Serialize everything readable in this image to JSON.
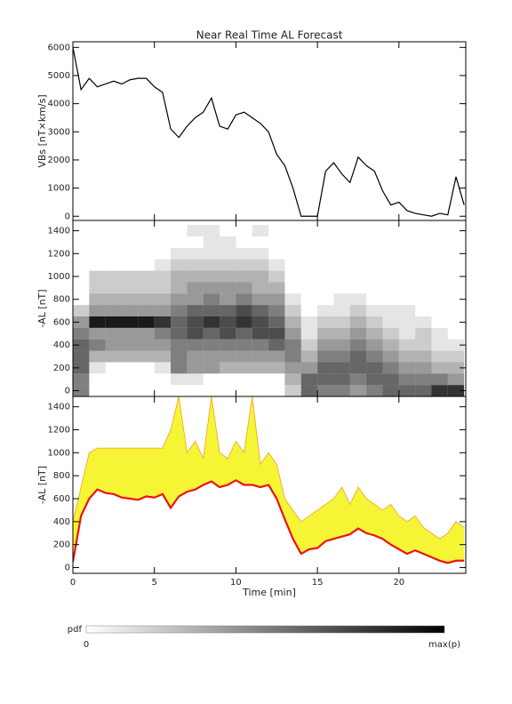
{
  "chart_data": [
    {
      "type": "line",
      "title": "Near Real Time AL Forecast",
      "ylabel": "VBs [nT×km/s]",
      "color": "#000000",
      "x": [
        0,
        0.5,
        1,
        1.5,
        2,
        2.5,
        3,
        3.5,
        4,
        4.5,
        5,
        5.5,
        6,
        6.5,
        7,
        7.5,
        8,
        8.5,
        9,
        9.5,
        10,
        10.5,
        11,
        11.5,
        12,
        12.5,
        13,
        13.5,
        14,
        14.5,
        15,
        15.5,
        16,
        16.5,
        17,
        17.5,
        18,
        18.5,
        19,
        19.5,
        20,
        20.5,
        21,
        21.5,
        22,
        22.5,
        23,
        23.5,
        24
      ],
      "values": [
        6000,
        4500,
        4900,
        4600,
        4700,
        4800,
        4700,
        4850,
        4900,
        4900,
        4600,
        4400,
        3100,
        2800,
        3200,
        3500,
        3700,
        4200,
        3200,
        3100,
        3600,
        3700,
        3500,
        3300,
        3000,
        2200,
        1800,
        1000,
        0,
        0,
        0,
        1600,
        1900,
        1500,
        1200,
        2100,
        1800,
        1600,
        900,
        400,
        500,
        200,
        100,
        50,
        0,
        100,
        50,
        1400,
        400
      ],
      "xlim": [
        0,
        24.1
      ],
      "xticks": [
        0,
        5,
        10,
        15,
        20
      ],
      "ylim": [
        -150,
        6200
      ],
      "yticks": [
        0,
        1000,
        2000,
        3000,
        4000,
        5000,
        6000
      ]
    },
    {
      "type": "heatmap",
      "ylabel": "-AL [nT]",
      "x_bins": [
        0,
        1,
        2,
        3,
        4,
        5,
        6,
        7,
        8,
        9,
        10,
        11,
        12,
        13,
        14,
        15,
        16,
        17,
        18,
        19,
        20,
        21,
        22,
        23,
        24
      ],
      "y_bins": [
        -50,
        50,
        150,
        250,
        350,
        450,
        550,
        650,
        750,
        850,
        950,
        1050,
        1150,
        1250,
        1350,
        1450
      ],
      "z": [
        [
          0.5,
          0.5,
          0.6,
          0.6,
          0.6,
          0.5,
          0.4,
          0.2,
          0,
          0,
          0,
          0,
          0,
          0,
          0
        ],
        [
          0,
          0,
          0.1,
          0.3,
          0.5,
          0.4,
          0.9,
          0.4,
          0.3,
          0.2,
          0.2,
          0,
          0,
          0,
          0
        ],
        [
          0,
          0,
          0,
          0.3,
          0.4,
          0.4,
          0.9,
          0.4,
          0.3,
          0.2,
          0.2,
          0,
          0,
          0,
          0
        ],
        [
          0,
          0,
          0,
          0.3,
          0.4,
          0.4,
          0.9,
          0.4,
          0.3,
          0.2,
          0.2,
          0,
          0,
          0,
          0
        ],
        [
          0,
          0,
          0,
          0.3,
          0.4,
          0.4,
          0.9,
          0.4,
          0.3,
          0.2,
          0.2,
          0,
          0,
          0,
          0
        ],
        [
          0,
          0,
          0.1,
          0.3,
          0.4,
          0.5,
          0.8,
          0.4,
          0.3,
          0.2,
          0.2,
          0.1,
          0,
          0,
          0
        ],
        [
          0,
          0.1,
          0.5,
          0.5,
          0.5,
          0.6,
          0.6,
          0.5,
          0.4,
          0.3,
          0.3,
          0.2,
          0.1,
          0,
          0
        ],
        [
          0,
          0.1,
          0.4,
          0.4,
          0.5,
          0.7,
          0.7,
          0.6,
          0.4,
          0.4,
          0.3,
          0.2,
          0.1,
          0,
          0.1
        ],
        [
          0,
          0,
          0.4,
          0.4,
          0.5,
          0.6,
          0.8,
          0.6,
          0.5,
          0.4,
          0.3,
          0.2,
          0.1,
          0.1,
          0.1
        ],
        [
          0,
          0,
          0.3,
          0.4,
          0.5,
          0.7,
          0.7,
          0.6,
          0.4,
          0.4,
          0.3,
          0.2,
          0.1,
          0.1,
          0
        ],
        [
          0,
          0,
          0.3,
          0.4,
          0.5,
          0.6,
          0.8,
          0.7,
          0.5,
          0.4,
          0.3,
          0.2,
          0.1,
          0,
          0
        ],
        [
          0,
          0,
          0.3,
          0.4,
          0.5,
          0.7,
          0.7,
          0.6,
          0.4,
          0.3,
          0.3,
          0.2,
          0.1,
          0,
          0.1
        ],
        [
          0,
          0,
          0.3,
          0.4,
          0.6,
          0.7,
          0.6,
          0.5,
          0.4,
          0.3,
          0.2,
          0.1,
          0,
          0,
          0
        ],
        [
          0.2,
          0.3,
          0.4,
          0.5,
          0.5,
          0.4,
          0.3,
          0.2,
          0.1,
          0,
          0,
          0,
          0,
          0,
          0
        ],
        [
          0.6,
          0.6,
          0.4,
          0.3,
          0.2,
          0.1,
          0.1,
          0,
          0,
          0,
          0,
          0,
          0,
          0,
          0
        ],
        [
          0.5,
          0.6,
          0.6,
          0.5,
          0.4,
          0.3,
          0.2,
          0.1,
          0,
          0,
          0,
          0,
          0,
          0,
          0
        ],
        [
          0.5,
          0.6,
          0.6,
          0.5,
          0.4,
          0.3,
          0.2,
          0.1,
          0.1,
          0,
          0,
          0,
          0,
          0,
          0
        ],
        [
          0.4,
          0.5,
          0.6,
          0.6,
          0.5,
          0.4,
          0.3,
          0.2,
          0.1,
          0,
          0,
          0,
          0,
          0,
          0
        ],
        [
          0.5,
          0.6,
          0.6,
          0.5,
          0.4,
          0.3,
          0.2,
          0.1,
          0,
          0,
          0,
          0,
          0,
          0,
          0
        ],
        [
          0.6,
          0.6,
          0.5,
          0.4,
          0.3,
          0.2,
          0.1,
          0.1,
          0,
          0,
          0,
          0,
          0,
          0,
          0
        ],
        [
          0.6,
          0.5,
          0.4,
          0.3,
          0.2,
          0.1,
          0.1,
          0.1,
          0,
          0,
          0,
          0,
          0,
          0,
          0
        ],
        [
          0.6,
          0.5,
          0.4,
          0.3,
          0.2,
          0.2,
          0.1,
          0,
          0,
          0,
          0,
          0,
          0,
          0,
          0
        ],
        [
          0.8,
          0.5,
          0.3,
          0.2,
          0.1,
          0.1,
          0,
          0,
          0,
          0,
          0,
          0,
          0,
          0,
          0
        ],
        [
          0.8,
          0.4,
          0.3,
          0.2,
          0.1,
          0,
          0,
          0,
          0,
          0,
          0,
          0,
          0,
          0,
          0
        ]
      ],
      "xlim": [
        0,
        24.1
      ],
      "xticks": [
        0,
        5,
        10,
        15,
        20
      ],
      "ylim": [
        -50,
        1490
      ],
      "yticks": [
        0,
        200,
        400,
        600,
        800,
        1000,
        1200,
        1400
      ]
    },
    {
      "type": "band",
      "ylabel": "-AL [nT]",
      "xlabel": "Time [min]",
      "x": [
        0,
        0.5,
        1,
        1.5,
        2,
        2.5,
        3,
        3.5,
        4,
        4.5,
        5,
        5.5,
        6,
        6.5,
        7,
        7.5,
        8,
        8.5,
        9,
        9.5,
        10,
        10.5,
        11,
        11.5,
        12,
        12.5,
        13,
        13.5,
        14,
        14.5,
        15,
        15.5,
        16,
        16.5,
        17,
        17.5,
        18,
        18.5,
        19,
        19.5,
        20,
        20.5,
        21,
        21.5,
        22,
        22.5,
        23,
        23.5,
        24
      ],
      "series": [
        {
          "color": "#f5f536",
          "values": [
            400,
            700,
            1000,
            1040,
            1040,
            1040,
            1040,
            1040,
            1040,
            1040,
            1040,
            1040,
            1200,
            1490,
            1000,
            1100,
            950,
            1490,
            1000,
            950,
            1100,
            1000,
            1490,
            900,
            1000,
            900,
            600,
            500,
            400,
            450,
            500,
            550,
            600,
            700,
            550,
            700,
            600,
            550,
            500,
            550,
            450,
            400,
            450,
            350,
            300,
            250,
            300,
            400,
            350
          ]
        },
        {
          "color": "#ee1111",
          "values": [
            50,
            450,
            600,
            680,
            650,
            640,
            610,
            600,
            590,
            620,
            610,
            640,
            520,
            620,
            660,
            680,
            720,
            750,
            700,
            720,
            760,
            720,
            720,
            700,
            720,
            600,
            420,
            250,
            120,
            160,
            170,
            230,
            250,
            270,
            290,
            340,
            300,
            280,
            250,
            200,
            160,
            120,
            150,
            120,
            90,
            60,
            40,
            60,
            60
          ]
        }
      ],
      "xlim": [
        0,
        24.1
      ],
      "xticks": [
        0,
        5,
        10,
        15,
        20
      ],
      "ylim": [
        -50,
        1490
      ],
      "yticks": [
        0,
        200,
        400,
        600,
        800,
        1000,
        1200,
        1400
      ]
    }
  ],
  "colorbar": {
    "label": "pdf",
    "min_label": "0",
    "max_label": "max(p)"
  }
}
